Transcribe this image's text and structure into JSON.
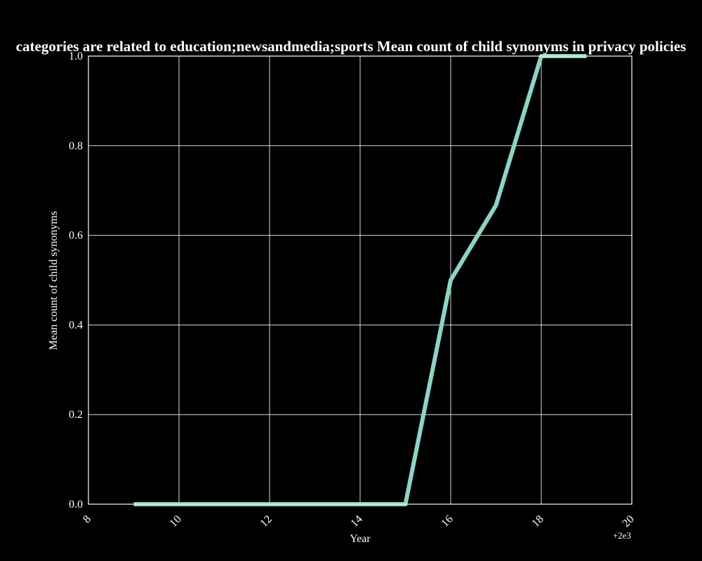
{
  "chart_data": {
    "type": "line",
    "title": "categories are related to education;newsandmedia;sports Mean count of child synonyms in privacy policies",
    "xlabel": "Year",
    "ylabel": "Mean count of child synonyms",
    "x_offset_label": "+2e3",
    "xlim": [
      8,
      20
    ],
    "ylim": [
      0.0,
      1.0
    ],
    "x_ticks": [
      "8",
      "10",
      "12",
      "14",
      "16",
      "18",
      "20"
    ],
    "y_ticks": [
      "0.0",
      "0.2",
      "0.4",
      "0.6",
      "0.8",
      "1.0"
    ],
    "grid": true,
    "series": [
      {
        "x": [
          9,
          10,
          11,
          12,
          13,
          14,
          15,
          16,
          17,
          18,
          19
        ],
        "y": [
          0.0,
          0.0,
          0.0,
          0.0,
          0.0,
          0.0,
          0.0,
          0.5,
          0.667,
          1.0,
          1.0
        ],
        "color": "#8dd3c7"
      }
    ]
  }
}
